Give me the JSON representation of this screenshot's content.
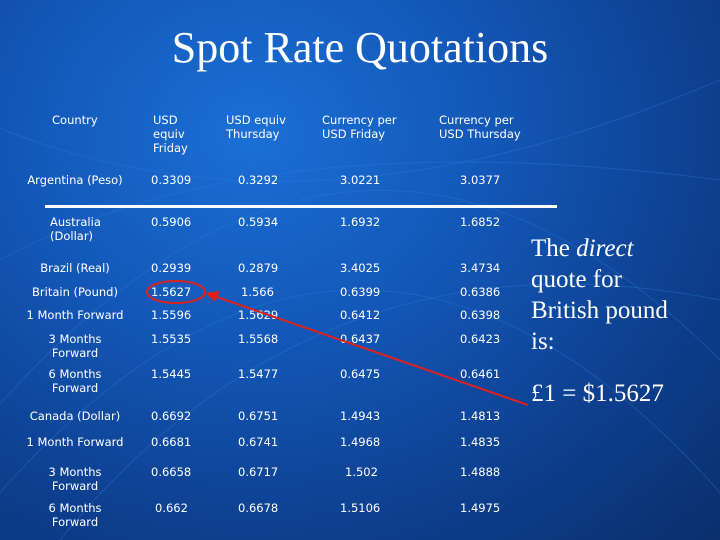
{
  "title": "Spot Rate Quotations",
  "headers": {
    "country": "Country",
    "usd_fri": [
      "USD",
      "equiv",
      "Friday"
    ],
    "usd_thu": [
      "USD equiv",
      "Thursday"
    ],
    "cur_fri": [
      "Currency per",
      "USD Friday"
    ],
    "cur_thu": [
      "Currency per",
      "USD Thursday"
    ]
  },
  "rows": [
    {
      "country": [
        "Argentina (Peso)"
      ],
      "usd_fri": "0.3309",
      "usd_thu": "0.3292",
      "cur_fri": "3.0221",
      "cur_thu": "3.0377"
    },
    {
      "country": [
        "Australia",
        "(Dollar)"
      ],
      "usd_fri": "0.5906",
      "usd_thu": "0.5934",
      "cur_fri": "1.6932",
      "cur_thu": "1.6852"
    },
    {
      "country": [
        "Brazil (Real)"
      ],
      "usd_fri": "0.2939",
      "usd_thu": "0.2879",
      "cur_fri": "3.4025",
      "cur_thu": "3.4734"
    },
    {
      "country": [
        "Britain (Pound)"
      ],
      "usd_fri": "1.5627",
      "usd_thu": "1.566",
      "cur_fri": "0.6399",
      "cur_thu": "0.6386"
    },
    {
      "country": [
        "1 Month Forward"
      ],
      "usd_fri": "1.5596",
      "usd_thu": "1.5629",
      "cur_fri": "0.6412",
      "cur_thu": "0.6398"
    },
    {
      "country": [
        "3 Months",
        "Forward"
      ],
      "usd_fri": "1.5535",
      "usd_thu": "1.5568",
      "cur_fri": "0.6437",
      "cur_thu": "0.6423"
    },
    {
      "country": [
        "6 Months",
        "Forward"
      ],
      "usd_fri": "1.5445",
      "usd_thu": "1.5477",
      "cur_fri": "0.6475",
      "cur_thu": "0.6461"
    },
    {
      "country": [
        "Canada (Dollar)"
      ],
      "usd_fri": "0.6692",
      "usd_thu": "0.6751",
      "cur_fri": "1.4943",
      "cur_thu": "1.4813"
    },
    {
      "country": [
        "1 Month Forward"
      ],
      "usd_fri": "0.6681",
      "usd_thu": "0.6741",
      "cur_fri": "1.4968",
      "cur_thu": "1.4835"
    },
    {
      "country": [
        "3 Months",
        "Forward"
      ],
      "usd_fri": "0.6658",
      "usd_thu": "0.6717",
      "cur_fri": "1.502",
      "cur_thu": "1.4888"
    },
    {
      "country": [
        "6 Months",
        "Forward"
      ],
      "usd_fri": "0.662",
      "usd_thu": "0.6678",
      "cur_fri": "1.5106",
      "cur_thu": "1.4975"
    }
  ],
  "note": {
    "line1_pre": "The ",
    "line1_em": "direct",
    "line2": "quote for",
    "line3": "British pound",
    "line4": "is:",
    "equation": "£1 = $1.5627"
  },
  "colors": {
    "background": "#1358b8",
    "text": "#ffffff",
    "callout": "#e0201a"
  }
}
